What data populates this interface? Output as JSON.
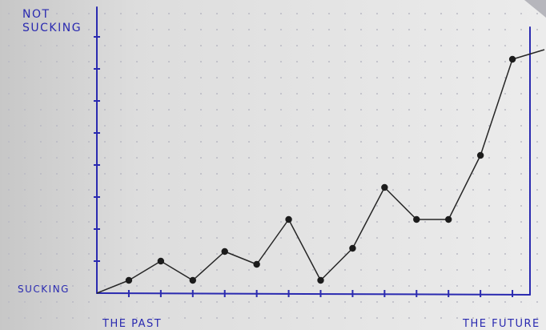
{
  "chart_data": {
    "type": "line",
    "x": [
      0,
      1,
      2,
      3,
      4,
      5,
      6,
      7,
      8,
      9,
      10,
      11,
      12,
      13
    ],
    "values": [
      0.4,
      1.0,
      0.4,
      1.3,
      0.9,
      2.3,
      0.4,
      1.4,
      3.3,
      2.3,
      2.3,
      4.3,
      7.3,
      7.6
    ],
    "point_marked": [
      true,
      true,
      true,
      true,
      true,
      true,
      true,
      true,
      true,
      true,
      true,
      true,
      true,
      false
    ],
    "xlim": [
      -1,
      13
    ],
    "ylim": [
      0,
      8
    ],
    "x_ticks": 13,
    "y_ticks": 8,
    "ylabel_top": "NOT\nSUCKING",
    "ylabel_bottom": "SUCKING",
    "xlabel_left": "THE PAST",
    "xlabel_right": "THE FUTURE",
    "grid": "dotted",
    "colors": {
      "axis": "#2a2ab0",
      "line": "#262626",
      "marker": "#1c1c1c",
      "paper": "#e9e9e9",
      "dots": "#b9b9c4"
    }
  }
}
